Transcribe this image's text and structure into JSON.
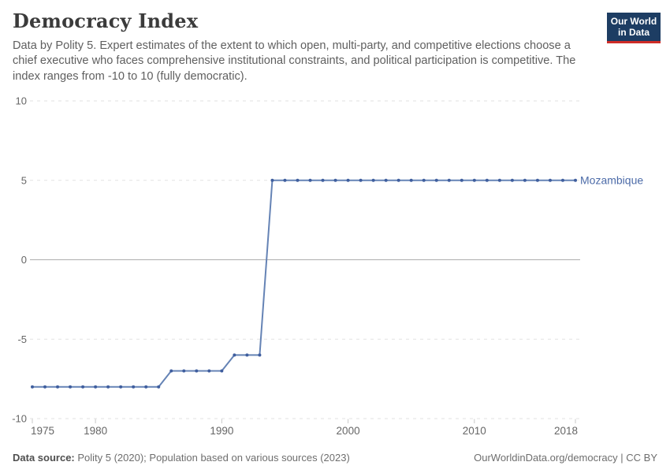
{
  "header": {
    "title": "Democracy Index",
    "subtitle": "Data by Polity 5. Expert estimates of the extent to which open, multi-party, and competitive elections choose a chief executive who faces comprehensive institutional constraints, and political participation is competitive. The index ranges from -10 to 10 (fully democratic).",
    "logo": {
      "line1": "Our World",
      "line2": "in Data"
    }
  },
  "chart_data": {
    "type": "line",
    "title": "Democracy Index",
    "xlabel": "",
    "ylabel": "",
    "xlim": [
      1975,
      2018
    ],
    "ylim": [
      -10,
      10
    ],
    "x_ticks": [
      1975,
      1980,
      1990,
      2000,
      2010,
      2018
    ],
    "y_ticks": [
      10,
      5,
      0,
      -5,
      -10
    ],
    "grid": "horizontal dashed gridlines, solid line at zero",
    "legend_position": "label at end of line",
    "series": [
      {
        "name": "Mozambique",
        "years": [
          1975,
          1976,
          1977,
          1978,
          1979,
          1980,
          1981,
          1982,
          1983,
          1984,
          1985,
          1986,
          1987,
          1988,
          1989,
          1990,
          1991,
          1992,
          1993,
          1994,
          1995,
          1996,
          1997,
          1998,
          1999,
          2000,
          2001,
          2002,
          2003,
          2004,
          2005,
          2006,
          2007,
          2008,
          2009,
          2010,
          2011,
          2012,
          2013,
          2014,
          2015,
          2016,
          2017,
          2018
        ],
        "values": [
          -8,
          -8,
          -8,
          -8,
          -8,
          -8,
          -8,
          -8,
          -8,
          -8,
          -8,
          -7,
          -7,
          -7,
          -7,
          -7,
          -6,
          -6,
          -6,
          5,
          5,
          5,
          5,
          5,
          5,
          5,
          5,
          5,
          5,
          5,
          5,
          5,
          5,
          5,
          5,
          5,
          5,
          5,
          5,
          5,
          5,
          5,
          5,
          5
        ]
      }
    ]
  },
  "footer": {
    "source_label": "Data source:",
    "source_text": " Polity 5 (2020); Population based on various sources (2023)",
    "credit": "OurWorldinData.org/democracy | CC BY"
  },
  "colors": {
    "line": "#6583b5",
    "marker": "#3f5e9e",
    "series_label": "#4c6ba8",
    "grid": "#e2e2e2",
    "zero_line": "#adadad",
    "tick_mark": "#c9c9c9",
    "axis_text": "#666666",
    "logo_bg": "#1d3d63",
    "logo_red": "#cf2d27"
  }
}
